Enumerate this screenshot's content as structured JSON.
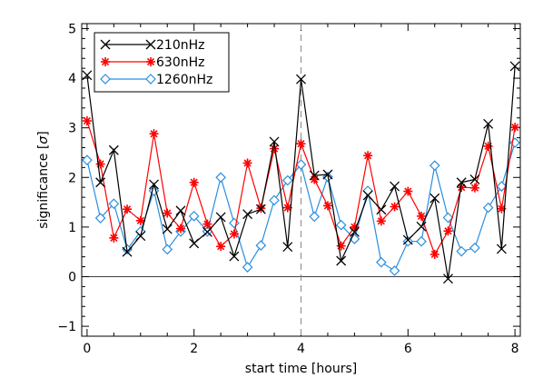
{
  "chart_data": {
    "type": "line",
    "xlabel": "start time [hours]",
    "ylabel_prefix": "significance [",
    "ylabel_symbol": "σ",
    "ylabel_suffix": "]",
    "xlim": [
      -0.1,
      8.1
    ],
    "ylim": [
      -1.2,
      5.1
    ],
    "xticks": [
      0,
      2,
      4,
      6,
      8
    ],
    "yticks": [
      -1,
      0,
      1,
      2,
      3,
      4,
      5
    ],
    "x_minor_step": 0.5,
    "y_minor_step": 0.2,
    "zero_line": true,
    "vertical_dashed_line_x": 4,
    "legend_position": "top-left",
    "x": [
      0,
      0.25,
      0.5,
      0.75,
      1,
      1.25,
      1.5,
      1.75,
      2,
      2.25,
      2.5,
      2.75,
      3,
      3.25,
      3.5,
      3.75,
      4,
      4.25,
      4.5,
      4.75,
      5,
      5.25,
      5.5,
      5.75,
      6,
      6.25,
      6.5,
      6.75,
      7,
      7.25,
      7.5,
      7.75,
      8
    ],
    "series": [
      {
        "name": "210nHz",
        "color": "#000000",
        "marker": "x",
        "values": [
          4.06,
          1.9,
          2.55,
          0.5,
          0.82,
          1.86,
          0.96,
          1.33,
          0.67,
          0.9,
          1.2,
          0.41,
          1.26,
          1.36,
          2.72,
          0.6,
          3.98,
          2.04,
          2.06,
          0.32,
          0.9,
          1.64,
          1.35,
          1.82,
          0.74,
          1.01,
          1.58,
          -0.04,
          1.9,
          1.96,
          3.08,
          0.56,
          4.24
        ]
      },
      {
        "name": "630nHz",
        "color": "#ff0000",
        "marker": "asterisk",
        "values": [
          3.14,
          2.27,
          0.78,
          1.36,
          1.13,
          2.88,
          1.28,
          0.97,
          1.9,
          1.06,
          0.61,
          0.86,
          2.29,
          1.38,
          2.58,
          1.39,
          2.68,
          1.96,
          1.43,
          0.62,
          1.0,
          2.44,
          1.12,
          1.41,
          1.72,
          1.22,
          0.45,
          0.92,
          1.8,
          1.79,
          2.63,
          1.37,
          3.01
        ]
      },
      {
        "name": "1260nHz",
        "color": "#2a8ee0",
        "marker": "diamond",
        "values": [
          2.35,
          1.18,
          1.47,
          0.55,
          0.91,
          1.73,
          0.55,
          0.91,
          1.22,
          0.91,
          2.0,
          1.08,
          0.19,
          0.63,
          1.54,
          1.94,
          2.26,
          1.21,
          2.01,
          1.04,
          0.76,
          1.73,
          0.29,
          0.12,
          0.71,
          0.71,
          2.24,
          1.19,
          0.51,
          0.58,
          1.39,
          1.82,
          2.7
        ]
      }
    ]
  }
}
